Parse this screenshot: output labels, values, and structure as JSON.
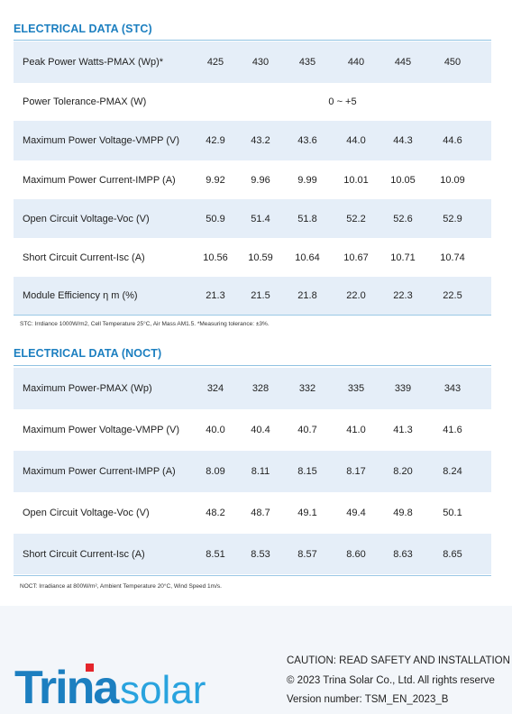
{
  "stc": {
    "title": "ELECTRICAL DATA (STC)",
    "rows": [
      {
        "label": "Peak Power Watts-PMAX (Wp)*",
        "values": [
          "425",
          "430",
          "435",
          "440",
          "445",
          "450"
        ]
      },
      {
        "label": "Power Tolerance-PMAX (W)",
        "span": "0 ~ +5"
      },
      {
        "label": "Maximum Power Voltage-VMPP (V)",
        "values": [
          "42.9",
          "43.2",
          "43.6",
          "44.0",
          "44.3",
          "44.6"
        ]
      },
      {
        "label": "Maximum Power Current-IMPP (A)",
        "values": [
          "9.92",
          "9.96",
          "9.99",
          "10.01",
          "10.05",
          "10.09"
        ]
      },
      {
        "label": "Open Circuit Voltage-Voc (V)",
        "values": [
          "50.9",
          "51.4",
          "51.8",
          "52.2",
          "52.6",
          "52.9"
        ]
      },
      {
        "label": "Short Circuit Current-Isc (A)",
        "values": [
          "10.56",
          "10.59",
          "10.64",
          "10.67",
          "10.71",
          "10.74"
        ]
      },
      {
        "label": "Module Efficiency η m (%)",
        "values": [
          "21.3",
          "21.5",
          "21.8",
          "22.0",
          "22.3",
          "22.5"
        ]
      }
    ],
    "note": "STC: Irrdiance 1000W/m2, Cell Temperature 25°C, Air Mass AM1.5.   *Measuring tolerance: ±3%."
  },
  "noct": {
    "title": "ELECTRICAL DATA (NOCT)",
    "rows": [
      {
        "label": "Maximum Power-PMAX (Wp)",
        "values": [
          "324",
          "328",
          "332",
          "335",
          "339",
          "343"
        ]
      },
      {
        "label": "Maximum Power Voltage-VMPP (V)",
        "values": [
          "40.0",
          "40.4",
          "40.7",
          "41.0",
          "41.3",
          "41.6"
        ]
      },
      {
        "label": "Maximum Power Current-IMPP (A)",
        "values": [
          "8.09",
          "8.11",
          "8.15",
          "8.17",
          "8.20",
          "8.24"
        ]
      },
      {
        "label": "Open Circuit Voltage-Voc (V)",
        "values": [
          "48.2",
          "48.7",
          "49.1",
          "49.4",
          "49.8",
          "50.1"
        ]
      },
      {
        "label": "Short Circuit Current-Isc (A)",
        "values": [
          "8.51",
          "8.53",
          "8.57",
          "8.60",
          "8.63",
          "8.65"
        ]
      }
    ],
    "note": "NOCT: Irradiance at 800W/m², Ambient Temperature 20°C, Wind Speed 1m/s."
  },
  "footer": {
    "logo_text_bold": "Trina",
    "logo_text_light": "solar",
    "caution": "CAUTION: READ SAFETY AND INSTALLATION",
    "copyright": "© 2023 Trina Solar Co., Ltd. All rights reserve",
    "version": "Version number: TSM_EN_2023_B",
    "colors": {
      "brand_red": "#e4252b",
      "brand_blue": "#1c7fc0",
      "light_blue": "#29a3de"
    }
  }
}
